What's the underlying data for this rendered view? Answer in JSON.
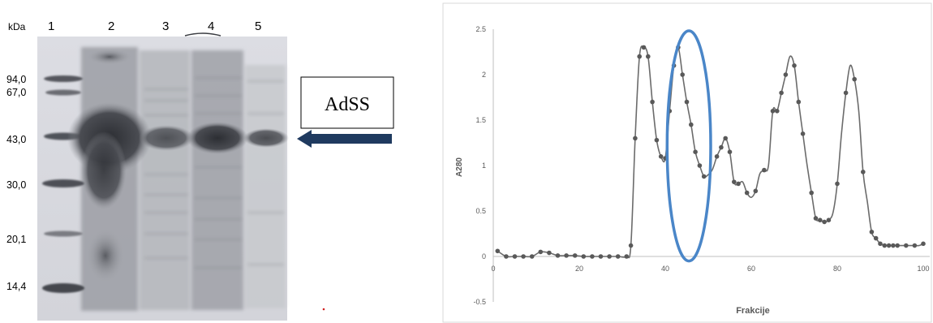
{
  "gel": {
    "unit_label": "kDa",
    "lane_labels": [
      "1",
      "2",
      "3",
      "4",
      "5"
    ],
    "marker_labels": [
      "94,0",
      "67,0",
      "43,0",
      "30,0",
      "20,1",
      "14,4"
    ],
    "callout_label": "AdSS",
    "arrow_color": "#1f3a5f"
  },
  "chart_data": {
    "type": "line",
    "title": "",
    "xlabel": "Frakcije",
    "ylabel": "A280",
    "xlim": [
      0,
      100
    ],
    "ylim": [
      -0.5,
      2.5
    ],
    "xticks": [
      "0",
      "20",
      "40",
      "60",
      "80",
      "100"
    ],
    "yticks": [
      "-0.5",
      "0",
      "0.5",
      "1",
      "1.5",
      "2",
      "2.5"
    ],
    "grid": false,
    "line_color": "#6b6b6b",
    "highlight_color": "#4a86c8",
    "highlight_range_x": [
      41,
      50
    ],
    "series": [
      {
        "x": [
          1,
          3,
          5,
          7,
          9,
          11,
          13,
          15,
          17,
          19,
          21,
          23,
          25,
          27,
          29,
          31,
          32,
          33,
          34,
          35,
          36,
          37,
          38,
          39,
          40,
          41,
          42,
          43,
          44,
          45,
          46,
          47,
          48,
          49,
          50,
          51,
          52,
          53,
          54,
          55,
          56,
          57,
          58,
          59,
          60,
          61,
          62,
          63,
          64,
          65,
          66,
          67,
          68,
          69,
          70,
          71,
          72,
          73,
          74,
          75,
          76,
          77,
          78,
          79,
          80,
          81,
          82,
          83,
          84,
          85,
          86,
          87,
          88,
          89,
          90,
          91,
          92,
          93,
          94,
          95,
          96,
          97,
          98,
          99,
          100
        ],
        "y": [
          0.06,
          0.0,
          0.0,
          0.0,
          0.0,
          0.05,
          0.04,
          0.01,
          0.01,
          0.01,
          0.0,
          0.0,
          0.0,
          0.0,
          0.0,
          0.0,
          0.12,
          1.3,
          2.2,
          2.3,
          2.2,
          1.7,
          1.28,
          1.1,
          1.08,
          1.6,
          2.1,
          2.3,
          2.0,
          1.7,
          1.45,
          1.15,
          1.0,
          0.88,
          0.9,
          0.96,
          1.1,
          1.2,
          1.3,
          1.15,
          0.82,
          0.8,
          0.82,
          0.7,
          0.65,
          0.72,
          0.91,
          0.95,
          1.0,
          1.6,
          1.6,
          1.8,
          2.0,
          2.2,
          2.1,
          1.7,
          1.35,
          1.0,
          0.7,
          0.42,
          0.4,
          0.38,
          0.4,
          0.48,
          0.8,
          1.36,
          1.8,
          2.1,
          1.95,
          1.6,
          0.93,
          0.6,
          0.27,
          0.2,
          0.14,
          0.12,
          0.12,
          0.12,
          0.12,
          0.12,
          0.12,
          0.12,
          0.12,
          0.12,
          0.14
        ],
        "markers": [
          1,
          3,
          5,
          7,
          9,
          11,
          13,
          15,
          17,
          19,
          21,
          23,
          25,
          27,
          29,
          31,
          32,
          33,
          34,
          35,
          36,
          37,
          38,
          39,
          40,
          41,
          42,
          43,
          44,
          45,
          46,
          47,
          48,
          49,
          52,
          53,
          54,
          55,
          56,
          57,
          59,
          61,
          63,
          65,
          66,
          67,
          68,
          70,
          71,
          72,
          74,
          75,
          76,
          77,
          78,
          80,
          82,
          84,
          86,
          88,
          89,
          90,
          91,
          92,
          93,
          94,
          96,
          98,
          100
        ]
      }
    ]
  }
}
